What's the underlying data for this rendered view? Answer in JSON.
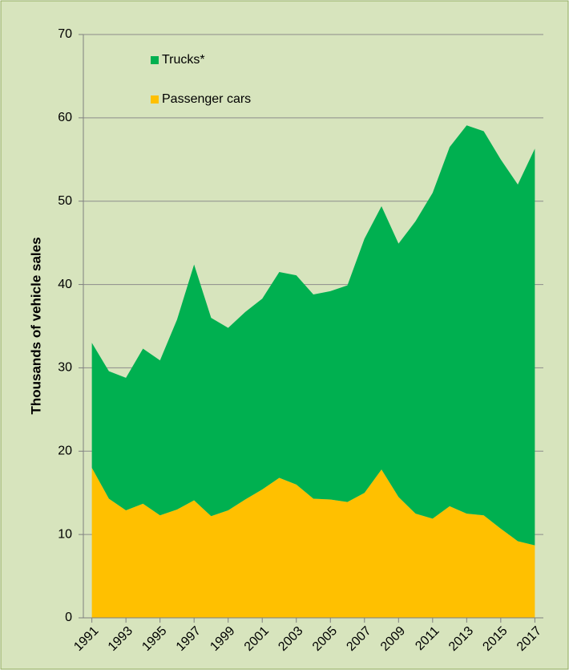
{
  "chart_data": {
    "type": "stacked-area",
    "y_label": "Thousands of vehicle sales",
    "x": [
      1991,
      1992,
      1993,
      1994,
      1995,
      1996,
      1997,
      1998,
      1999,
      2000,
      2001,
      2002,
      2003,
      2004,
      2005,
      2006,
      2007,
      2008,
      2009,
      2010,
      2011,
      2012,
      2013,
      2014,
      2015,
      2016,
      2017
    ],
    "xlim": [
      1990.5,
      2017.5
    ],
    "xticks": [
      1991,
      1993,
      1995,
      1997,
      1999,
      2001,
      2003,
      2005,
      2007,
      2009,
      2011,
      2013,
      2015,
      2017
    ],
    "ylim": [
      0,
      70
    ],
    "yticks": [
      0,
      10,
      20,
      30,
      40,
      50,
      60,
      70
    ],
    "grid": true,
    "legend": "upper left",
    "series": [
      {
        "name": "Passenger cars",
        "color": "#ffc000",
        "values": [
          18.0,
          14.3,
          12.9,
          13.7,
          12.3,
          13.0,
          14.1,
          12.2,
          12.9,
          14.2,
          15.4,
          16.8,
          16.0,
          14.3,
          14.2,
          13.9,
          15.0,
          17.8,
          14.5,
          12.5,
          11.9,
          13.4,
          12.5,
          12.3,
          10.7,
          9.2,
          8.7
        ]
      },
      {
        "name": "Trucks*",
        "color": "#00b050",
        "values": [
          15.0,
          15.3,
          15.9,
          18.6,
          18.6,
          22.8,
          28.3,
          23.8,
          21.9,
          22.5,
          22.9,
          24.7,
          25.1,
          24.5,
          25.0,
          26.0,
          30.5,
          31.6,
          30.4,
          35.1,
          39.1,
          43.1,
          46.6,
          46.1,
          44.3,
          42.8,
          47.6
        ]
      }
    ]
  }
}
